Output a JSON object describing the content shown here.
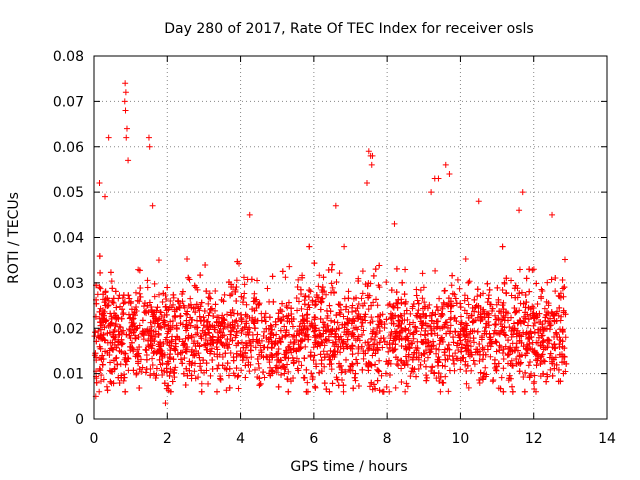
{
  "chart_data": {
    "type": "scatter",
    "title": "Day 280 of 2017, Rate Of TEC Index for receiver osls",
    "xlabel": "GPS time / hours",
    "ylabel": "ROTI / TECUs",
    "xlim": [
      0,
      14
    ],
    "ylim": [
      0,
      0.08
    ],
    "xticks": [
      0,
      2,
      4,
      6,
      8,
      10,
      12,
      14
    ],
    "xtick_labels": [
      "0",
      "2",
      "4",
      "6",
      "8",
      "10",
      "12",
      "14"
    ],
    "yticks": [
      0,
      0.01,
      0.02,
      0.03,
      0.04,
      0.05,
      0.06,
      0.07,
      0.08
    ],
    "ytick_labels": [
      "0",
      "0.01",
      "0.02",
      "0.03",
      "0.04",
      "0.05",
      "0.06",
      "0.07",
      "0.08"
    ],
    "grid": true,
    "marker": "+",
    "marker_color": "#ff0000",
    "series": [
      {
        "name": "ROTI",
        "x_range": [
          0,
          12.9
        ],
        "typical_range": [
          0.008,
          0.035
        ],
        "outliers": [
          {
            "x": 0.85,
            "y": 0.074
          },
          {
            "x": 0.87,
            "y": 0.072
          },
          {
            "x": 0.84,
            "y": 0.07
          },
          {
            "x": 0.86,
            "y": 0.068
          },
          {
            "x": 0.9,
            "y": 0.064
          },
          {
            "x": 0.88,
            "y": 0.062
          },
          {
            "x": 0.93,
            "y": 0.057
          },
          {
            "x": 0.4,
            "y": 0.062
          },
          {
            "x": 1.5,
            "y": 0.062
          },
          {
            "x": 1.52,
            "y": 0.06
          },
          {
            "x": 0.15,
            "y": 0.052
          },
          {
            "x": 0.3,
            "y": 0.049
          },
          {
            "x": 1.6,
            "y": 0.047
          },
          {
            "x": 7.5,
            "y": 0.059
          },
          {
            "x": 7.55,
            "y": 0.058
          },
          {
            "x": 7.6,
            "y": 0.058
          },
          {
            "x": 7.58,
            "y": 0.056
          },
          {
            "x": 7.45,
            "y": 0.052
          },
          {
            "x": 9.6,
            "y": 0.056
          },
          {
            "x": 9.3,
            "y": 0.053
          },
          {
            "x": 9.4,
            "y": 0.053
          },
          {
            "x": 9.7,
            "y": 0.054
          },
          {
            "x": 9.2,
            "y": 0.05
          },
          {
            "x": 11.7,
            "y": 0.05
          },
          {
            "x": 11.6,
            "y": 0.046
          },
          {
            "x": 10.5,
            "y": 0.048
          },
          {
            "x": 4.25,
            "y": 0.045
          },
          {
            "x": 6.6,
            "y": 0.047
          },
          {
            "x": 8.2,
            "y": 0.043
          },
          {
            "x": 12.5,
            "y": 0.045
          },
          {
            "x": 1.95,
            "y": 0.0035
          },
          {
            "x": 0.05,
            "y": 0.005
          }
        ]
      }
    ]
  }
}
